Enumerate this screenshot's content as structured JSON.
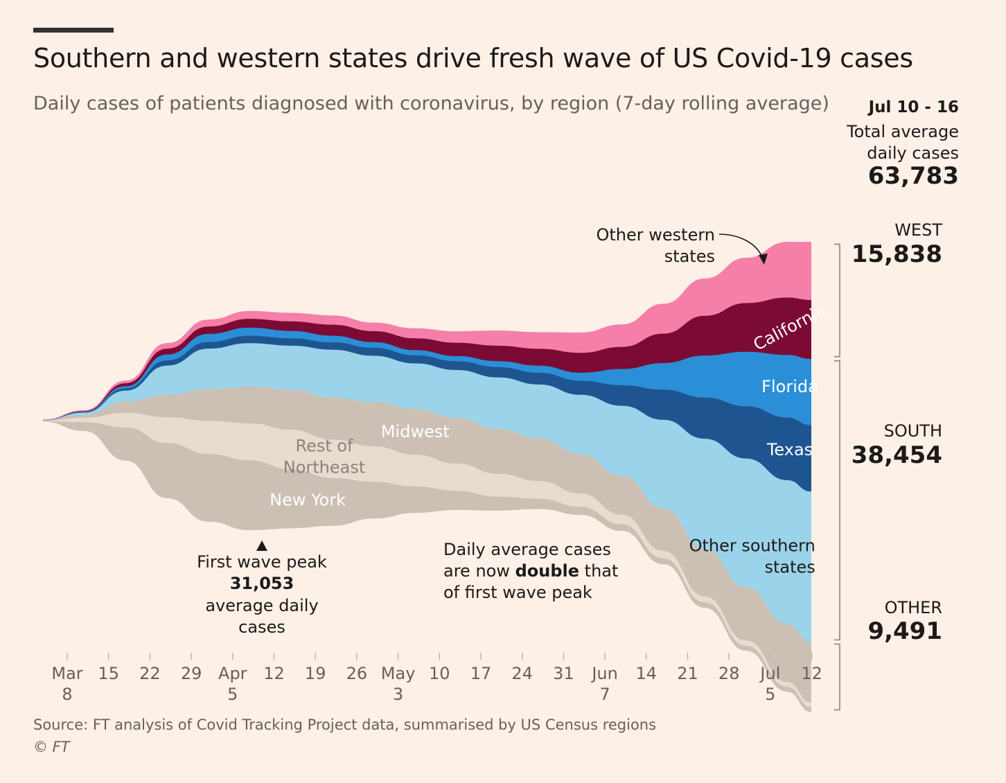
{
  "title": "Southern and western states drive fresh wave of US Covid-19 cases",
  "subtitle": "Daily cases of patients diagnosed with coronavirus, by region (7-day rolling average)",
  "source": "Source: FT analysis of Covid Tracking Project data, summarised by US Census regions",
  "copyright": "© FT",
  "colors": {
    "background": "#fdf0e6",
    "new_york": "#ccc0b5",
    "rest_of_northeast": "#e8dccf",
    "midwest": "#ccc0b5",
    "other_southern": "#9bd4ea",
    "texas": "#1e5591",
    "florida": "#2a8fd6",
    "california": "#7b0a34",
    "other_western": "#f57fa9"
  },
  "totals": {
    "period": "Jul 10 - 16",
    "label_line1": "Total average",
    "label_line2": "daily cases",
    "value": "63,783"
  },
  "regions": [
    {
      "name": "WEST",
      "value": "15,838"
    },
    {
      "name": "SOUTH",
      "value": "38,454"
    },
    {
      "name": "OTHER",
      "value": "9,491"
    }
  ],
  "annotations": {
    "peak_line1": "First wave peak",
    "peak_value": "31,053",
    "peak_line3": "average daily",
    "peak_line4": "cases",
    "double_line1": "Daily average cases",
    "double_line2_a": "are now ",
    "double_line2_b": "double",
    "double_line2_c": " that",
    "double_line3": "of first wave peak",
    "other_western_line1": "Other western",
    "other_western_line2": "states"
  },
  "chart_data": {
    "type": "area",
    "layout": "streamgraph",
    "x": [
      "Mar 8",
      "Mar 15",
      "Mar 22",
      "Mar 29",
      "Apr 5",
      "Apr 12",
      "Apr 19",
      "Apr 26",
      "May 3",
      "May 10",
      "May 17",
      "May 24",
      "May 31",
      "Jun 7",
      "Jun 14",
      "Jun 21",
      "Jun 28",
      "Jul 5",
      "Jul 12",
      "Jul 16"
    ],
    "x_ticks": [
      {
        "line1": "Mar",
        "line2": "8"
      },
      {
        "line1": "15",
        "line2": ""
      },
      {
        "line1": "22",
        "line2": ""
      },
      {
        "line1": "29",
        "line2": ""
      },
      {
        "line1": "Apr",
        "line2": "5"
      },
      {
        "line1": "12",
        "line2": ""
      },
      {
        "line1": "19",
        "line2": ""
      },
      {
        "line1": "26",
        "line2": ""
      },
      {
        "line1": "May",
        "line2": "3"
      },
      {
        "line1": "10",
        "line2": ""
      },
      {
        "line1": "17",
        "line2": ""
      },
      {
        "line1": "24",
        "line2": ""
      },
      {
        "line1": "31",
        "line2": ""
      },
      {
        "line1": "Jun",
        "line2": "7"
      },
      {
        "line1": "14",
        "line2": ""
      },
      {
        "line1": "21",
        "line2": ""
      },
      {
        "line1": "28",
        "line2": ""
      },
      {
        "line1": "Jul",
        "line2": "5"
      },
      {
        "line1": "12",
        "line2": ""
      }
    ],
    "series": [
      {
        "name": "New York",
        "group": "OTHER",
        "label": [
          "New York"
        ],
        "values": [
          50,
          1200,
          4500,
          7500,
          9200,
          9500,
          8000,
          6500,
          5000,
          3600,
          2600,
          1900,
          1400,
          1100,
          900,
          800,
          750,
          700,
          680,
          680
        ]
      },
      {
        "name": "Rest of Northeast",
        "label": [
          "Rest of",
          "Northeast"
        ],
        "group": "OTHER",
        "values": [
          50,
          600,
          2000,
          3500,
          4500,
          5000,
          5400,
          5200,
          4800,
          4300,
          3700,
          3100,
          2400,
          1800,
          1300,
          1000,
          800,
          700,
          650,
          640
        ]
      },
      {
        "name": "Midwest",
        "label": [
          "Midwest"
        ],
        "group": "OTHER",
        "values": [
          50,
          400,
          1500,
          3000,
          4300,
          5000,
          5400,
          5700,
          6000,
          6200,
          6200,
          6100,
          5800,
          5400,
          5300,
          5800,
          6400,
          7200,
          7900,
          8171
        ]
      },
      {
        "name": "Other southern states",
        "label": [
          "Other southern",
          "states"
        ],
        "group": "SOUTH",
        "values": [
          50,
          300,
          1500,
          4000,
          5500,
          5900,
          6000,
          6500,
          6300,
          6200,
          6500,
          7000,
          7300,
          8000,
          9500,
          12000,
          15000,
          17500,
          19500,
          20454
        ]
      },
      {
        "name": "Texas",
        "label": [
          "Texas"
        ],
        "group": "SOUTH",
        "values": [
          0,
          60,
          300,
          700,
          900,
          1000,
          1000,
          1000,
          1100,
          1100,
          1200,
          1400,
          1600,
          1900,
          2800,
          4100,
          5600,
          7100,
          8500,
          9000
        ]
      },
      {
        "name": "Florida",
        "label": [
          "Florida"
        ],
        "group": "SOUTH",
        "values": [
          0,
          60,
          300,
          800,
          1100,
          1100,
          1000,
          900,
          750,
          700,
          700,
          800,
          950,
          1100,
          2200,
          3600,
          5700,
          7400,
          8500,
          9000
        ]
      },
      {
        "name": "California",
        "label": [
          "California"
        ],
        "group": "WEST",
        "values": [
          0,
          80,
          400,
          800,
          1000,
          1200,
          1300,
          1500,
          1500,
          1600,
          1800,
          2100,
          2300,
          2700,
          3000,
          4000,
          5400,
          6600,
          7800,
          8000
        ]
      },
      {
        "name": "Other western states",
        "group": "WEST",
        "values": [
          0,
          80,
          300,
          700,
          900,
          1000,
          1100,
          1200,
          1100,
          1300,
          1500,
          2000,
          2200,
          2700,
          3000,
          4000,
          5000,
          6100,
          7500,
          7838
        ]
      }
    ],
    "first_wave_peak": {
      "x": "Apr 10",
      "value": 31053
    },
    "grid": false,
    "legend": "direct labels on areas"
  }
}
